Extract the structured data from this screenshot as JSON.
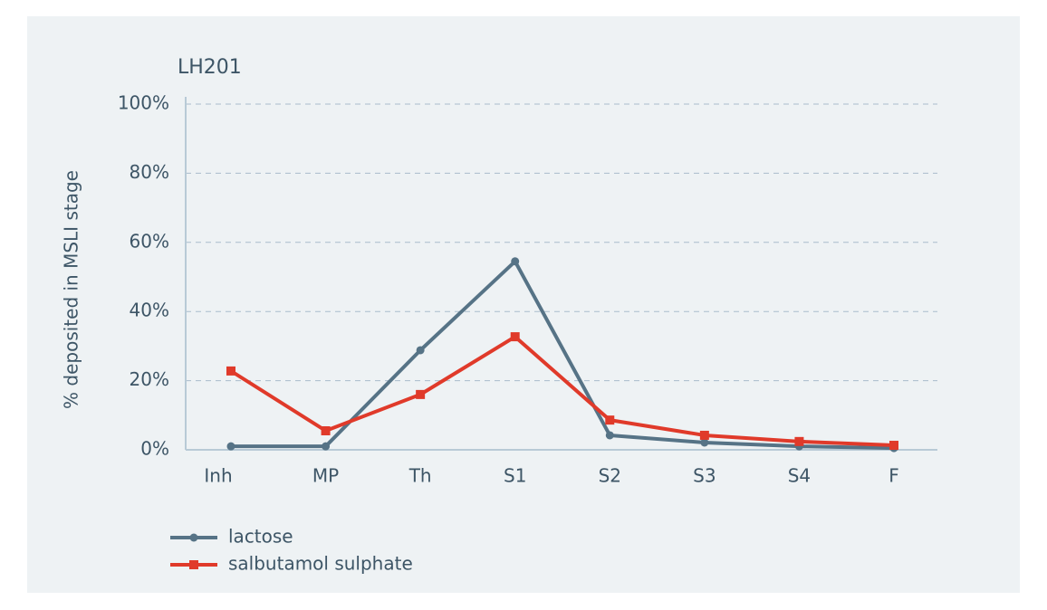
{
  "chart_data": {
    "type": "line",
    "title": "LH201",
    "y_label": "% deposited in MSLI stage",
    "categories": [
      "Inh",
      "MP",
      "Th",
      "S1",
      "S2",
      "S3",
      "S4",
      "F"
    ],
    "series": [
      {
        "name": "lactose",
        "color": "#567386",
        "marker": "circle",
        "values": [
          1,
          1,
          28.8,
          54.5,
          4.2,
          2.1,
          1,
          0.5
        ]
      },
      {
        "name": "salbutamol sulphate",
        "color": "#e03a2a",
        "marker": "square",
        "values": [
          22.8,
          5.5,
          16,
          32.7,
          8.6,
          4.2,
          2.4,
          1.3
        ]
      }
    ],
    "ylim": [
      0,
      100
    ],
    "yticks": [
      {
        "value": 0,
        "label": "0%"
      },
      {
        "value": 20,
        "label": "20%"
      },
      {
        "value": 40,
        "label": "40%"
      },
      {
        "value": 60,
        "label": "60%"
      },
      {
        "value": 80,
        "label": "80%"
      },
      {
        "value": 100,
        "label": "100%"
      }
    ],
    "grid": true
  }
}
